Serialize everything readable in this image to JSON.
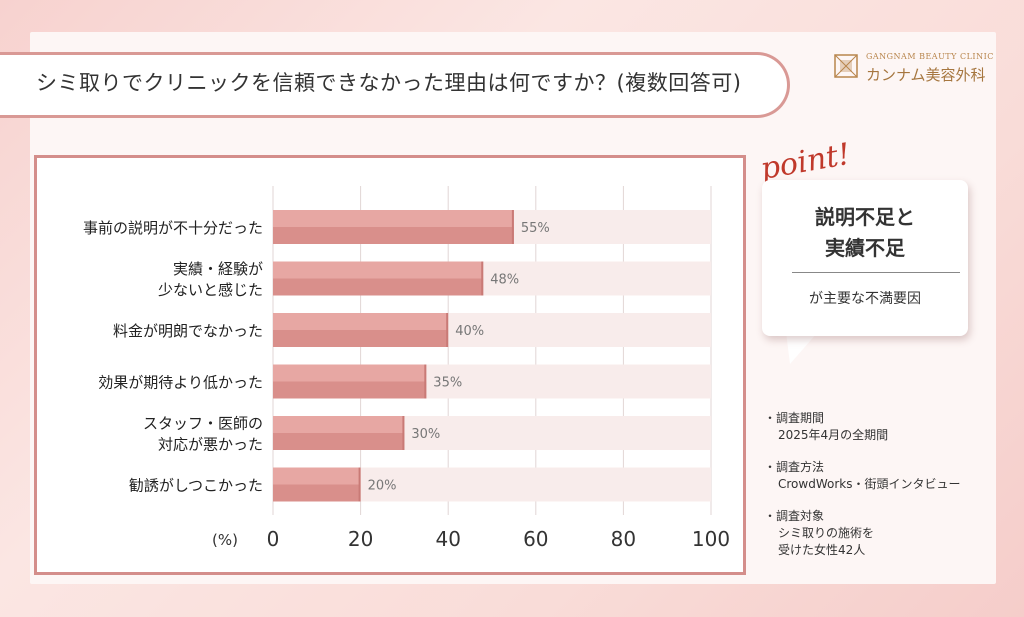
{
  "title": "シミ取りでクリニックを信頼できなかった理由は何ですか？(複数回答可)",
  "logo": {
    "top": "GANGNAM BEAUTY CLINIC",
    "bottom": "カンナム美容外科"
  },
  "point": {
    "label": "point!",
    "main_line1": "説明不足と",
    "main_line2": "実績不足",
    "sub": "が主要な不満要因"
  },
  "notes": [
    {
      "head": "調査期間",
      "body": [
        "2025年4月の全期間"
      ]
    },
    {
      "head": "調査方法",
      "body": [
        "CrowdWorks・街頭インタビュー"
      ]
    },
    {
      "head": "調査対象",
      "body": [
        "シミ取りの施術を",
        "受けた女性42人"
      ]
    }
  ],
  "chart_data": {
    "type": "bar",
    "orientation": "horizontal",
    "categories": [
      [
        "事前の説明が不十分だった"
      ],
      [
        "実績・経験が",
        "少ないと感じた"
      ],
      [
        "料金が明朗でなかった"
      ],
      [
        "効果が期待より低かった"
      ],
      [
        "スタッフ・医師の",
        "対応が悪かった"
      ],
      [
        "勧誘がしつこかった"
      ]
    ],
    "values": [
      55,
      48,
      40,
      35,
      30,
      20
    ],
    "value_labels": [
      "55%",
      "48%",
      "40%",
      "35%",
      "30%",
      "20%"
    ],
    "xlim": [
      0,
      100
    ],
    "xticks": [
      "0",
      "20",
      "40",
      "60",
      "80",
      "100"
    ],
    "xlabel": "(%)",
    "grid": true,
    "colors": {
      "bar": "#e7a7a3",
      "bar_dark": "#d98f8b",
      "track": "#f8eceb",
      "grid": "#e2d6d5"
    }
  }
}
